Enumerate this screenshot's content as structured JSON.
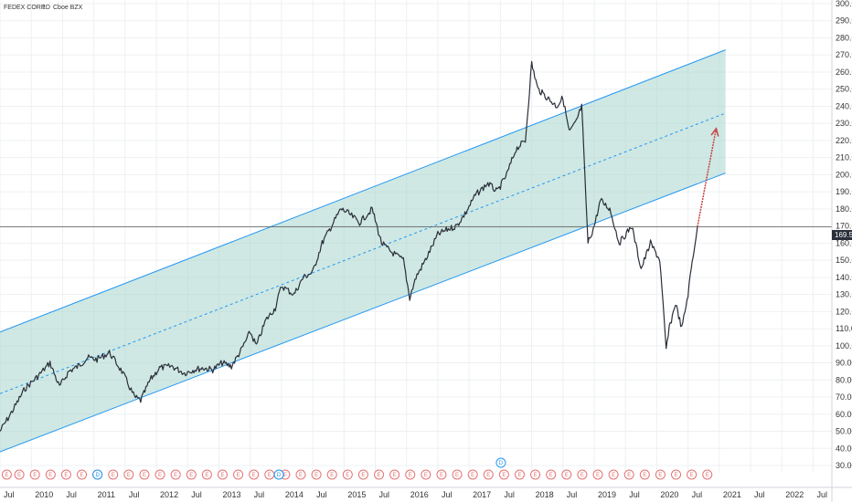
{
  "header": {
    "symbol": "FEDEX CORP",
    "interval": "1D",
    "exchange": "Cboe BZX"
  },
  "price_label": "169.55",
  "colors": {
    "price_line": "#2a2e39",
    "channel_line": "#2196f3",
    "channel_fill": "#a7d6cc",
    "arrow": "#c44242",
    "grid": "#eef0f3",
    "price_tag_bg": "#2a2e39",
    "earnings": "#e57373",
    "dividend": "#2196f3"
  },
  "chart_data": {
    "type": "line",
    "title": "",
    "xlabel": "",
    "ylabel": "",
    "ylim": [
      35,
      300
    ],
    "y_ticks": [
      "30.00",
      "40.00",
      "50.00",
      "60.00",
      "70.00",
      "80.00",
      "90.00",
      "100.00",
      "110.00",
      "120.00",
      "130.00",
      "140.00",
      "150.00",
      "160.00",
      "170.00",
      "180.00",
      "190.00",
      "200.00",
      "210.00",
      "220.00",
      "230.00",
      "240.00",
      "250.00",
      "260.00",
      "270.00",
      "280.00",
      "290.00",
      "300.00"
    ],
    "x_ticks": [
      "Jul",
      "2010",
      "Jul",
      "2011",
      "Jul",
      "2012",
      "Jul",
      "2013",
      "Jul",
      "2014",
      "Jul",
      "2015",
      "Jul",
      "2016",
      "Jul",
      "2017",
      "Jul",
      "2018",
      "Jul",
      "2019",
      "Jul",
      "2020",
      "Jul",
      "2021",
      "Jul",
      "2022",
      "Jul"
    ],
    "current_price": 169.55,
    "series": [
      {
        "x": [
          2009.5,
          2009.7,
          2009.9,
          2010.1,
          2010.3,
          2010.45,
          2010.6,
          2010.75,
          2010.9,
          2011.05,
          2011.25,
          2011.45,
          2011.65,
          2011.75,
          2011.9,
          2012.05,
          2012.25,
          2012.45,
          2012.6,
          2012.75,
          2012.9,
          2013.05,
          2013.2,
          2013.35,
          2013.5,
          2013.6,
          2013.75,
          2013.9,
          2014.0,
          2014.2,
          2014.35,
          2014.5,
          2014.65,
          2014.8,
          2014.95,
          2015.05,
          2015.25,
          2015.45,
          2015.6,
          2015.75,
          2015.95,
          2016.05,
          2016.15,
          2016.3,
          2016.5,
          2016.65,
          2016.8,
          2016.95,
          2017.1,
          2017.3,
          2017.45,
          2017.6,
          2017.75,
          2017.9,
          2018.0,
          2018.1,
          2018.25,
          2018.4,
          2018.5,
          2018.6,
          2018.7,
          2018.8,
          2018.9,
          2019.0,
          2019.1,
          2019.25,
          2019.4,
          2019.5,
          2019.6,
          2019.75,
          2019.9,
          2020.05,
          2020.15,
          2020.2,
          2020.3,
          2020.4,
          2020.5,
          2020.55,
          2020.65
        ],
        "values": [
          50,
          62,
          75,
          82,
          90,
          76,
          85,
          88,
          93,
          92,
          96,
          85,
          70,
          68,
          80,
          87,
          88,
          84,
          86,
          87,
          86,
          90,
          88,
          97,
          108,
          100,
          115,
          122,
          135,
          130,
          140,
          143,
          160,
          170,
          180,
          178,
          172,
          180,
          160,
          155,
          150,
          128,
          140,
          150,
          165,
          168,
          170,
          178,
          188,
          195,
          190,
          200,
          215,
          220,
          265,
          250,
          245,
          240,
          245,
          225,
          230,
          240,
          160,
          170,
          185,
          180,
          160,
          165,
          170,
          145,
          160,
          150,
          98,
          110,
          125,
          110,
          130,
          145,
          169.55
        ]
      }
    ],
    "regression_channel": {
      "x_start": 2009.5,
      "x_end": 2021.1,
      "upper": [
        108,
        273
      ],
      "middle": [
        72,
        236
      ],
      "lower": [
        38,
        201
      ]
    },
    "projection_arrow": {
      "from": [
        2020.65,
        169.55
      ],
      "to": [
        2020.95,
        227
      ]
    },
    "event_markers": {
      "earnings_label": "E",
      "dividend_label": "D",
      "earnings_years": [
        2009.55,
        2009.75,
        2010.0,
        2010.25,
        2010.5,
        2010.75,
        2011.0,
        2011.25,
        2011.5,
        2011.75,
        2012.0,
        2012.25,
        2012.5,
        2012.75,
        2013.0,
        2013.25,
        2013.5,
        2013.75,
        2014.0,
        2014.25,
        2014.5,
        2014.75,
        2015.0,
        2015.25,
        2015.5,
        2015.75,
        2016.0,
        2016.25,
        2016.5,
        2016.75,
        2017.0,
        2017.25,
        2017.5,
        2017.75,
        2018.0,
        2018.25,
        2018.5,
        2018.75,
        2019.0,
        2019.25,
        2019.5,
        2019.75,
        2020.0,
        2020.25,
        2020.5,
        2020.75
      ],
      "dividend_years": [
        2011.0,
        2013.9,
        2017.45
      ]
    }
  }
}
